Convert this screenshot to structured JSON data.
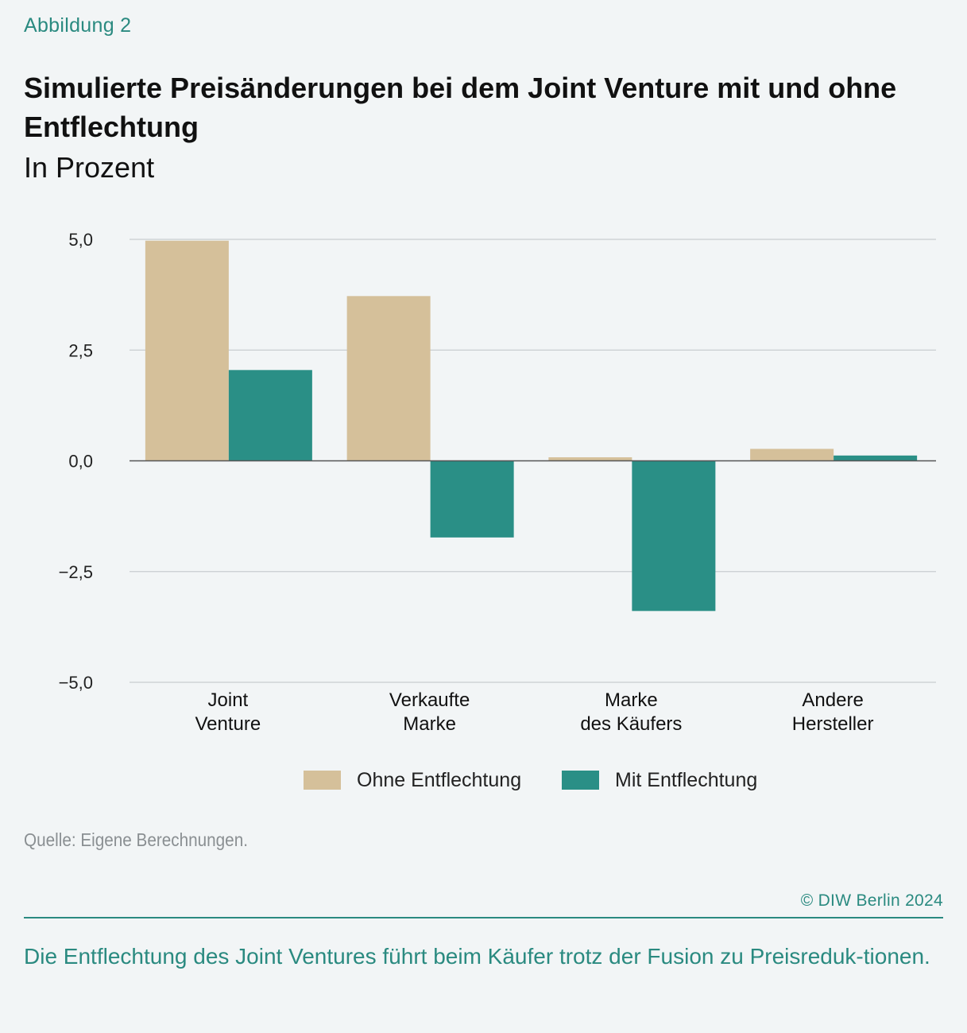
{
  "figure_label": "Abbildung 2",
  "title": "Simulierte Preisänderungen bei dem Joint Venture mit und ohne Entflechtung",
  "subtitle": "In Prozent",
  "source": "Quelle: Eigene Berechnungen.",
  "copyright": "© DIW Berlin 2024",
  "takeaway": "Die Entflechtung des Joint Ventures führt beim Käufer trotz der Fusion zu Preisreduk-tionen.",
  "colors": {
    "ohne": "#d5c09a",
    "mit": "#2a8f86",
    "accent": "#2a8a80",
    "grid": "#c9cdd0",
    "zero_line": "#555555",
    "background": "#f2f5f6"
  },
  "chart_data": {
    "type": "bar",
    "categories": [
      [
        "Joint",
        "Venture"
      ],
      [
        "Verkaufte",
        "Marke"
      ],
      [
        "Marke",
        "des Käufers"
      ],
      [
        "Andere",
        "Hersteller"
      ]
    ],
    "series": [
      {
        "name": "Ohne Entflechtung",
        "values": [
          4.97,
          3.72,
          0.08,
          0.27
        ],
        "color_key": "ohne"
      },
      {
        "name": "Mit Entflechtung",
        "values": [
          2.05,
          -1.73,
          -3.39,
          0.12
        ],
        "color_key": "mit"
      }
    ],
    "ylim": [
      -5,
      5
    ],
    "yticks": [
      5,
      2.5,
      0,
      -2.5,
      -5
    ],
    "ytick_labels": [
      "5,0",
      "2,5",
      "0,0",
      "−2,5",
      "−5,0"
    ],
    "grid": true,
    "legend": "bottom"
  }
}
